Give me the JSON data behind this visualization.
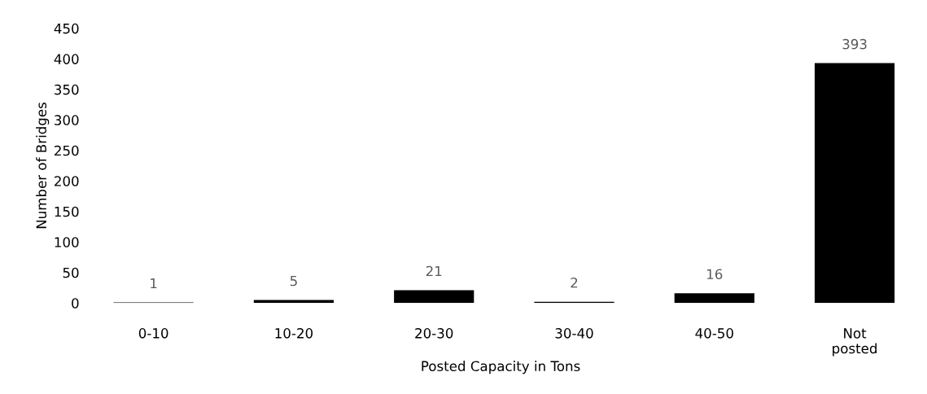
{
  "chart_data": {
    "type": "bar",
    "xlabel": "Posted Capacity in Tons",
    "ylabel": "Number of Bridges",
    "categories": [
      "0-10",
      "10-20",
      "20-30",
      "30-40",
      "40-50",
      "Not\nposted"
    ],
    "values": [
      1,
      5,
      21,
      2,
      16,
      393
    ],
    "color": "#000000",
    "ylim": [
      0,
      450
    ],
    "yticks": [
      0,
      50,
      100,
      150,
      200,
      250,
      300,
      350,
      400,
      450
    ],
    "data_labels": true,
    "grid": false,
    "legend": false
  }
}
